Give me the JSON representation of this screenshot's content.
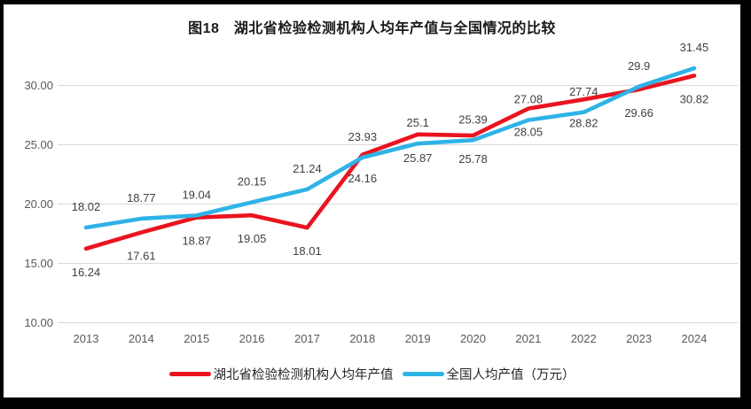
{
  "window": {
    "background": "#ffffff",
    "frame_border_color": "#000000"
  },
  "chart_data": {
    "type": "line",
    "title": "图18　湖北省检验检测机构人均年产值与全国情况的比较",
    "categories": [
      "2013",
      "2014",
      "2015",
      "2016",
      "2017",
      "2018",
      "2019",
      "2020",
      "2021",
      "2022",
      "2023",
      "2024"
    ],
    "series": [
      {
        "name": "湖北省检验检测机构人均年产值",
        "color": "#e9141f",
        "label_position": "below",
        "values": [
          16.24,
          17.61,
          18.87,
          19.05,
          18.01,
          24.16,
          25.87,
          25.78,
          28.05,
          28.82,
          29.66,
          30.82
        ]
      },
      {
        "name": "全国人均产值（万元）",
        "color": "#2fb3e6",
        "label_position": "above",
        "values": [
          18.02,
          18.77,
          19.04,
          20.15,
          21.24,
          23.93,
          25.1,
          25.39,
          27.08,
          27.74,
          29.9,
          31.45
        ]
      }
    ],
    "y_axis": {
      "ticks": [
        {
          "value": 30,
          "label": "30.00"
        },
        {
          "value": 25,
          "label": "25.00"
        },
        {
          "value": 20,
          "label": "20.00"
        },
        {
          "value": 15,
          "label": "15.00"
        },
        {
          "value": 10,
          "label": "10.00"
        }
      ],
      "range": [
        10,
        35
      ]
    },
    "xlabel": "",
    "ylabel": "",
    "grid": true,
    "data_labels": true,
    "legend_position": "bottom"
  },
  "colors": {
    "grid_line": "#d9d9d9",
    "axis_text": "#595959",
    "data_label_text": "#404040",
    "title_text": "#1a1a1a",
    "legend_text": "#262626"
  }
}
